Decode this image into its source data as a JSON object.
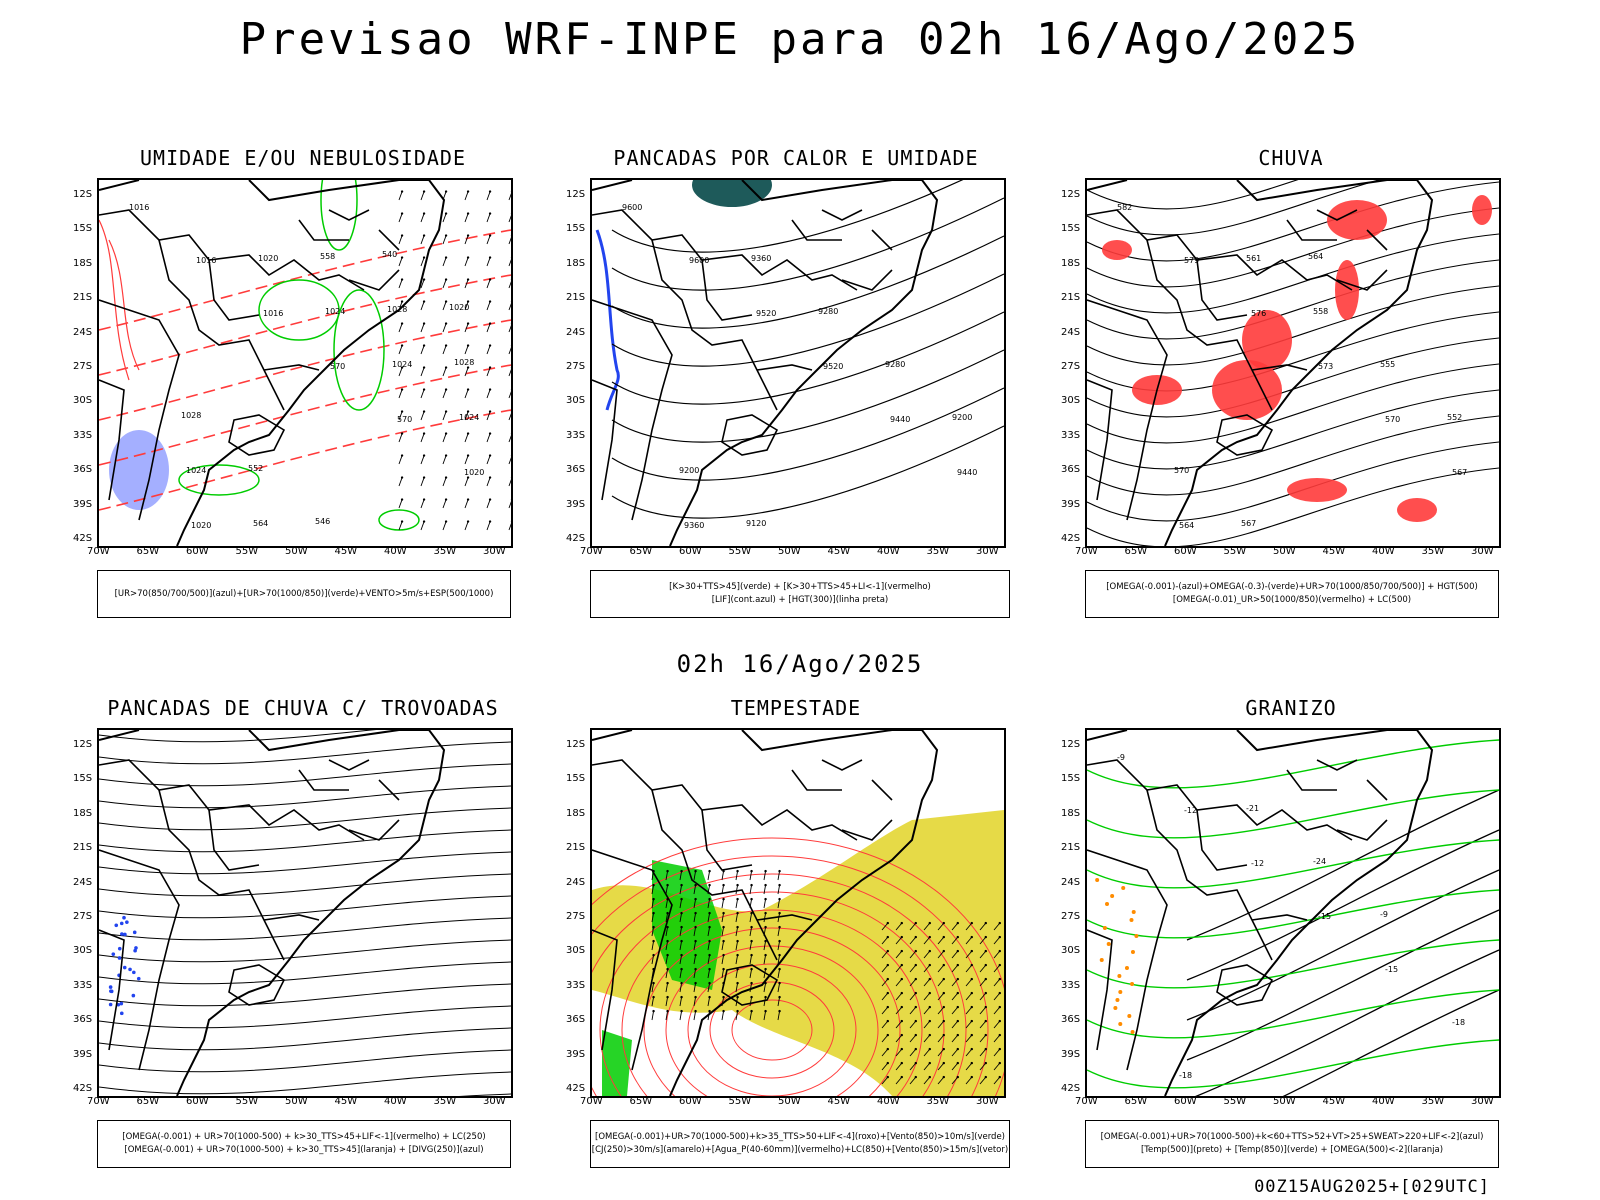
{
  "title": "Previsao WRF-INPE  para 02h 16/Ago/2025",
  "subtitle": "02h 16/Ago/2025",
  "footer": "00Z15AUG2025+[029UTC]",
  "lat_ticks": [
    "12S",
    "15S",
    "18S",
    "21S",
    "24S",
    "27S",
    "30S",
    "33S",
    "36S",
    "39S",
    "42S"
  ],
  "lon_ticks": [
    "70W",
    "65W",
    "60W",
    "55W",
    "50W",
    "45W",
    "40W",
    "35W",
    "30W"
  ],
  "colors": {
    "humidity_blue": "#9aa6ff",
    "green": "#00cc00",
    "red": "#ff3b3b",
    "yellow": "#e3d633",
    "teal": "#1e5a5a",
    "blue": "#2244ee",
    "orange": "#ff8c00"
  },
  "panels": [
    {
      "title": "UMIDADE E/OU NEBULOSIDADE",
      "legend": [
        "[UR>70(850/700/500)](azul)+[UR>70(1000/850)](verde)+VENTO>5m/s+ESP(500/1000)"
      ],
      "labels": [
        "1016",
        "1016",
        "1016",
        "570",
        "570",
        "1020",
        "1020",
        "1020",
        "1024",
        "1024",
        "1024",
        "1024",
        "564",
        "558",
        "1028",
        "1028",
        "1028",
        "552",
        "546",
        "540",
        "1020"
      ]
    },
    {
      "title": "PANCADAS POR CALOR E UMIDADE",
      "legend": [
        "[K>30+TTS>45](verde) + [K>30+TTS>45+LI<-1](vermelho)",
        "[LIF](cont.azul) + [HGT(300)](linha preta)"
      ],
      "labels": [
        "9600",
        "9600",
        "9520",
        "9520",
        "9440",
        "9440",
        "9360",
        "9360",
        "9280",
        "9280",
        "9200",
        "9200",
        "9120"
      ]
    },
    {
      "title": "CHUVA",
      "legend": [
        "[OMEGA(-0.001)-(azul)+OMEGA(-0.3)-(verde)+UR>70(1000/850/700/500)] + HGT(500)",
        "[OMEGA(-0.01)_UR>50(1000/850)(vermelho) + LC(500)"
      ],
      "labels": [
        "582",
        "579",
        "576",
        "573",
        "570",
        "567",
        "564",
        "561",
        "558",
        "555",
        "552",
        "570",
        "567",
        "564"
      ]
    },
    {
      "title": "PANCADAS DE CHUVA C/ TROVOADAS",
      "legend": [
        "[OMEGA(-0.001) + UR>70(1000-500) + k>30_TTS>45+LIF<-1](vermelho) + LC(250)",
        "[OMEGA(-0.001) + UR>70(1000-500) + k>30_TTS>45](laranja) + [DIVG(250)](azul)"
      ],
      "labels": []
    },
    {
      "title": "TEMPESTADE",
      "legend": [
        "[OMEGA(-0.001)+UR>70(1000-500)+k>35_TTS>50+LIF<-4](roxo)+[Vento(850)>10m/s](verde)",
        "[CJ(250)>30m/s](amarelo)+[Agua_P(40-60mm)](vermelho)+LC(850)+[Vento(850)>15m/s](vetor)"
      ],
      "labels": []
    },
    {
      "title": "GRANIZO",
      "legend": [
        "[OMEGA(-0.001)+UR>70(1000-500)+k<60+TTS>52+VT>25+SWEAT>220+LIF<-2](azul)",
        "[Temp(500)](preto) + [Temp(850)](verde) + [OMEGA(500)<-2](laranja)"
      ],
      "labels": [
        "-9",
        "-12",
        "-12",
        "-15",
        "-15",
        "-18",
        "-18",
        "-21",
        "-24",
        "-9"
      ]
    }
  ]
}
